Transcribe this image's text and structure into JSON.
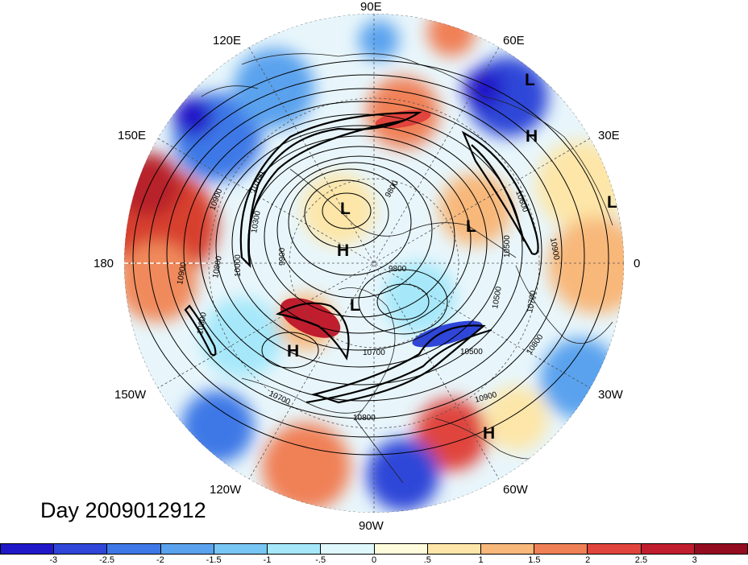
{
  "longitude_labels": [
    "90E",
    "60E",
    "30E",
    "0",
    "30W",
    "60W",
    "90W",
    "120W",
    "150W",
    "180",
    "150E",
    "120E"
  ],
  "day_label": "Day 2009012912",
  "pressure_systems": [
    "L",
    "H",
    "L",
    "L",
    "H",
    "L",
    "L",
    "H",
    "H"
  ],
  "contour_labels": [
    "9800",
    "9800",
    "9900",
    "10000",
    "10100",
    "10300",
    "10500",
    "10500",
    "10500",
    "10600",
    "10700",
    "10700",
    "10700",
    "10800",
    "10800",
    "10800",
    "10800",
    "10900",
    "10900",
    "10900",
    "10900"
  ],
  "colorbar": {
    "colors": [
      "#2018c8",
      "#2f46d8",
      "#3e78e6",
      "#5aa2ee",
      "#78c6f4",
      "#a6e8fa",
      "#def8fc",
      "#fefcdc",
      "#fde6a8",
      "#f8b87a",
      "#f08056",
      "#e0443c",
      "#c01e2e",
      "#940c20"
    ],
    "tick_labels": [
      "-3",
      "-2.5",
      "-2",
      "-1.5",
      "-1",
      "-.5",
      "0",
      ".5",
      "1",
      "1.5",
      "2",
      "2.5",
      "3"
    ]
  }
}
